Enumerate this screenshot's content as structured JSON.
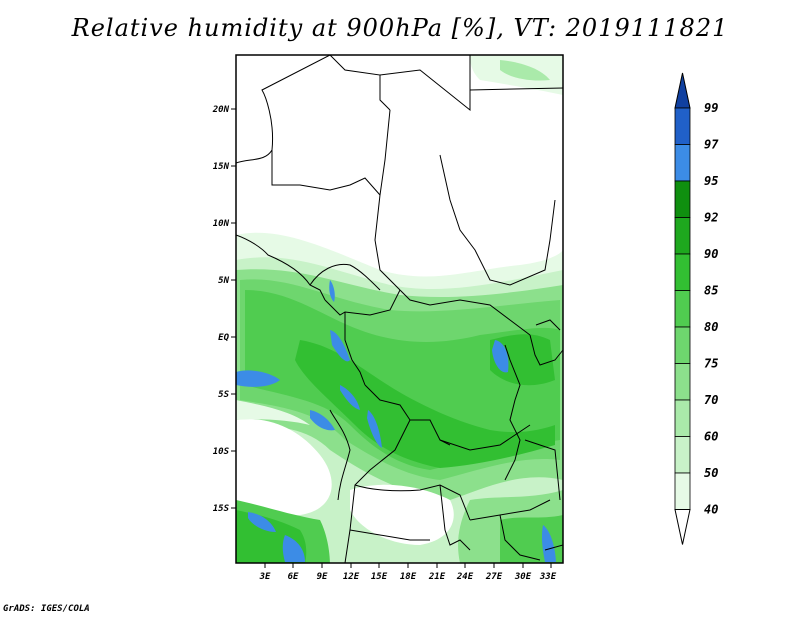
{
  "title": "Relative humidity at 900hPa [%], VT: 2019111821",
  "credit": "GrADS: IGES/COLA",
  "map": {
    "lat_ticks": [
      "20N",
      "15N",
      "10N",
      "5N",
      "EQ",
      "5S",
      "10S",
      "15S"
    ],
    "lon_ticks": [
      "3E",
      "6E",
      "9E",
      "12E",
      "15E",
      "18E",
      "21E",
      "24E",
      "27E",
      "30E",
      "33E"
    ],
    "lon_range": [
      0,
      34
    ],
    "lat_range": [
      -20,
      24
    ]
  },
  "colorbar": {
    "levels": [
      "40",
      "50",
      "60",
      "70",
      "75",
      "80",
      "85",
      "90",
      "92",
      "95",
      "97",
      "99"
    ],
    "colors": [
      "#ffffff",
      "#e6fae6",
      "#c8f2c8",
      "#aaeaaa",
      "#8ce08c",
      "#6ed66e",
      "#50cc50",
      "#32bf32",
      "#1ea81e",
      "#0f8f0f",
      "#3c8ce6",
      "#2060c8",
      "#1040a0"
    ]
  }
}
